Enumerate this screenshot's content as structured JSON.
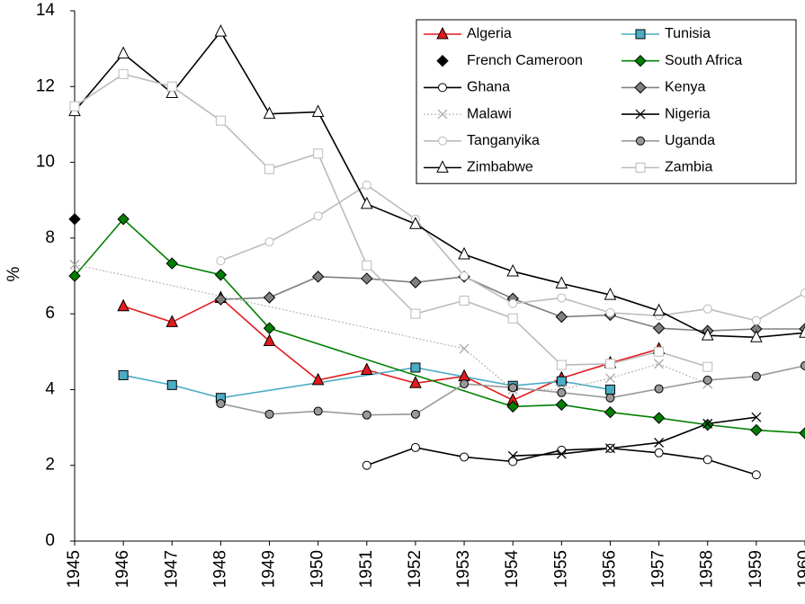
{
  "chart_data": {
    "type": "line",
    "y_label": "%",
    "xlim": [
      1945,
      1960
    ],
    "xticks": [
      1945,
      1946,
      1947,
      1948,
      1949,
      1950,
      1951,
      1952,
      1953,
      1954,
      1955,
      1956,
      1957,
      1958,
      1959,
      1960
    ],
    "ylim": [
      0,
      14
    ],
    "yticks": [
      0,
      2,
      4,
      6,
      8,
      10,
      12,
      14
    ],
    "grid": false,
    "legend": "upper right",
    "series": [
      {
        "name": "Algeria",
        "color": "#e31a1c",
        "marker": "triangle",
        "marker_fill": "#e31a1c",
        "line_style": "solid",
        "x": [
          1946,
          1947,
          1948,
          1949,
          1950,
          1951,
          1952,
          1953,
          1954,
          1955,
          1956,
          1957
        ],
        "values": [
          6.2,
          5.78,
          6.42,
          5.28,
          4.25,
          4.52,
          4.17,
          4.35,
          3.72,
          4.3,
          4.7,
          5.07
        ]
      },
      {
        "name": "Tunisia",
        "color": "#4bacc6",
        "marker": "square",
        "marker_fill": "#4bacc6",
        "line_style": "solid",
        "x": [
          1946,
          1947,
          1948,
          1952,
          1954,
          1955,
          1956
        ],
        "values": [
          4.38,
          4.12,
          3.78,
          4.58,
          4.1,
          4.22,
          4.0
        ]
      },
      {
        "name": "French Cameroon",
        "color": "#000000",
        "marker": "diamond",
        "marker_fill": "#000000",
        "line_style": "none",
        "x": [
          1945
        ],
        "values": [
          8.5
        ]
      },
      {
        "name": "South Africa",
        "color": "#008000",
        "marker": "diamond",
        "marker_fill": "#008000",
        "line_style": "solid",
        "x": [
          1945,
          1946,
          1947,
          1948,
          1949,
          1954,
          1955,
          1956,
          1957,
          1958,
          1959,
          1960
        ],
        "values": [
          7.0,
          8.5,
          7.33,
          7.03,
          5.62,
          3.55,
          3.6,
          3.4,
          3.25,
          3.07,
          2.93,
          2.85
        ]
      },
      {
        "name": "Ghana",
        "color": "#000000",
        "marker": "circle",
        "marker_fill": "#ffffff",
        "line_style": "solid",
        "x": [
          1951,
          1952,
          1953,
          1954,
          1955,
          1956,
          1957,
          1958,
          1959
        ],
        "values": [
          2.0,
          2.47,
          2.22,
          2.1,
          2.4,
          2.45,
          2.33,
          2.15,
          1.75
        ]
      },
      {
        "name": "Kenya",
        "color": "#808080",
        "marker": "diamond",
        "marker_fill": "#808080",
        "line_style": "solid",
        "x": [
          1948,
          1949,
          1950,
          1951,
          1952,
          1953,
          1954,
          1955,
          1956,
          1957,
          1958,
          1959,
          1960
        ],
        "values": [
          6.38,
          6.43,
          6.98,
          6.93,
          6.83,
          6.98,
          6.4,
          5.92,
          5.97,
          5.62,
          5.55,
          5.6,
          5.6
        ]
      },
      {
        "name": "Malawi",
        "color": "#aaaaaa",
        "marker": "cross",
        "marker_fill": "#aaaaaa",
        "line_style": "dotted",
        "x": [
          1945,
          1953,
          1954,
          1955,
          1956,
          1957,
          1958
        ],
        "values": [
          7.3,
          5.08,
          4.0,
          4.0,
          4.3,
          4.68,
          4.15
        ]
      },
      {
        "name": "Nigeria",
        "color": "#000000",
        "marker": "cross",
        "marker_fill": "#000000",
        "line_style": "solid",
        "x": [
          1954,
          1955,
          1956,
          1957,
          1958,
          1959
        ],
        "values": [
          2.25,
          2.3,
          2.45,
          2.6,
          3.1,
          3.27
        ]
      },
      {
        "name": "Tanganyika",
        "color": "#bbbbbb",
        "marker": "circle",
        "marker_fill": "#ffffff",
        "line_style": "solid",
        "x": [
          1948,
          1949,
          1950,
          1951,
          1952,
          1953,
          1954,
          1955,
          1956,
          1957,
          1958,
          1959,
          1960
        ],
        "values": [
          7.4,
          7.9,
          8.58,
          9.4,
          8.5,
          7.0,
          6.27,
          6.42,
          6.03,
          5.95,
          6.13,
          5.82,
          6.55
        ]
      },
      {
        "name": "Uganda",
        "color": "#999999",
        "marker": "circle",
        "marker_fill": "#999999",
        "line_style": "solid",
        "x": [
          1948,
          1949,
          1950,
          1951,
          1952,
          1953,
          1954,
          1955,
          1956,
          1957,
          1958,
          1959,
          1960
        ],
        "values": [
          3.63,
          3.35,
          3.43,
          3.33,
          3.35,
          4.15,
          4.05,
          3.92,
          3.78,
          4.02,
          4.25,
          4.35,
          4.63
        ]
      },
      {
        "name": "Zimbabwe",
        "color": "#000000",
        "marker": "triangle",
        "marker_fill": "#ffffff",
        "line_style": "solid",
        "x": [
          1945,
          1946,
          1947,
          1948,
          1949,
          1950,
          1951,
          1952,
          1953,
          1954,
          1955,
          1956,
          1957,
          1958,
          1959,
          1960
        ],
        "values": [
          11.35,
          12.87,
          11.83,
          13.45,
          11.28,
          11.33,
          8.9,
          8.37,
          7.57,
          7.12,
          6.8,
          6.5,
          6.08,
          5.43,
          5.38,
          5.5
        ]
      },
      {
        "name": "Zambia",
        "color": "#bbbbbb",
        "marker": "square",
        "marker_fill": "#ffffff",
        "line_style": "solid",
        "x": [
          1945,
          1946,
          1947,
          1948,
          1949,
          1950,
          1951,
          1952,
          1953,
          1954,
          1955,
          1956,
          1957,
          1958
        ],
        "values": [
          11.48,
          12.33,
          12.0,
          11.1,
          9.82,
          10.23,
          7.28,
          6.0,
          6.35,
          5.88,
          4.65,
          4.68,
          5.0,
          4.6
        ]
      }
    ]
  }
}
